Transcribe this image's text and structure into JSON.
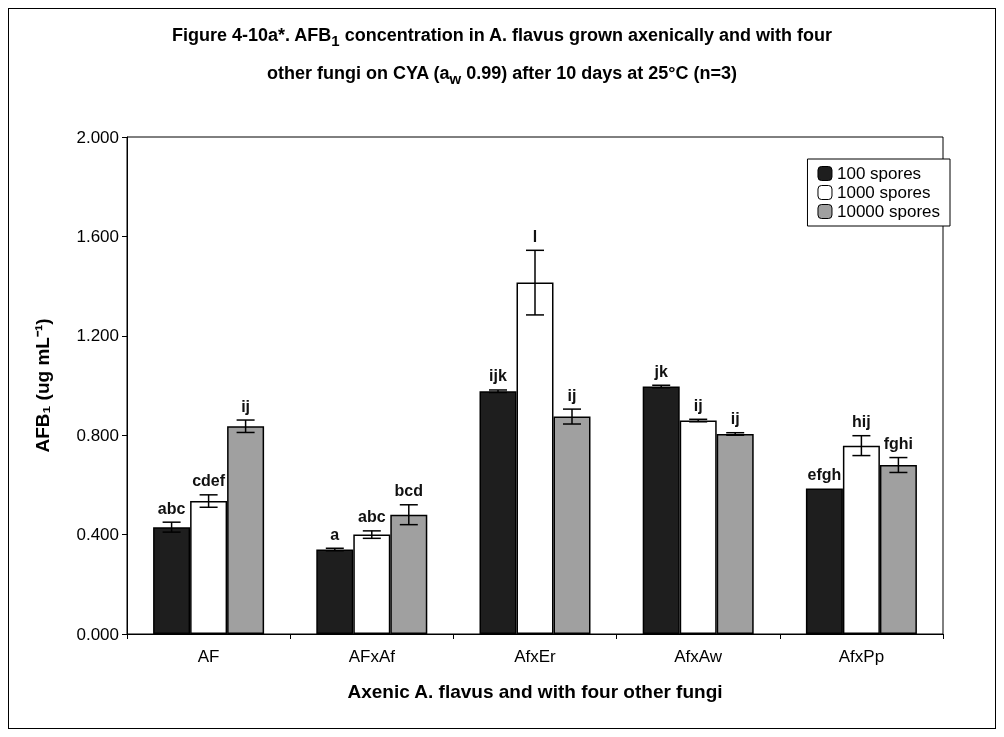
{
  "chart_data": {
    "type": "bar",
    "title": "Figure 4-10a*. AFB$_{1}$ concentration in A. flavus grown axenically and with four other fungi on CYA (a$_{w}$ 0.99) after 10 days at 25°C (n=3)",
    "xlabel": "Axenic A. flavus and with four other fungi",
    "ylabel": "AFB₁ (ug mL⁻¹)",
    "categories": [
      "AF",
      "AFxAf",
      "AfxEr",
      "AfxAw",
      "AfxPp"
    ],
    "series": [
      {
        "name": "100 spores",
        "color": "#1e1e1e",
        "values": [
          0.43,
          0.34,
          0.977,
          0.996,
          0.586
        ],
        "errors": [
          0.02,
          0.005,
          0.005,
          0.005,
          null
        ],
        "value_labels": [
          "abc",
          "a",
          "ijk",
          "jk",
          "efgh"
        ]
      },
      {
        "name": "1000 spores",
        "color": "#ffffff",
        "values": [
          0.535,
          0.4,
          1.414,
          0.859,
          0.758
        ],
        "errors": [
          0.025,
          0.015,
          0.13,
          0.005,
          0.04
        ],
        "value_labels": [
          "cdef",
          "abc",
          "l",
          "ij",
          "hij"
        ]
      },
      {
        "name": "10000 spores",
        "color": "#a0a0a0",
        "values": [
          0.836,
          0.48,
          0.875,
          0.805,
          0.68
        ],
        "errors": [
          0.025,
          0.04,
          0.03,
          0.005,
          0.03
        ],
        "value_labels": [
          "ij",
          "bcd",
          "ij",
          "ij",
          "fghi"
        ]
      }
    ],
    "ylim": [
      0,
      2
    ],
    "yticks": [
      {
        "value": 0,
        "label": "0.000"
      },
      {
        "value": 0.4,
        "label": "0.400"
      },
      {
        "value": 0.8,
        "label": "0.800"
      },
      {
        "value": 1.2,
        "label": "1.200"
      },
      {
        "value": 1.6,
        "label": "1.600"
      },
      {
        "value": 2,
        "label": "2.000"
      }
    ],
    "grid": false,
    "legend": "top right"
  }
}
